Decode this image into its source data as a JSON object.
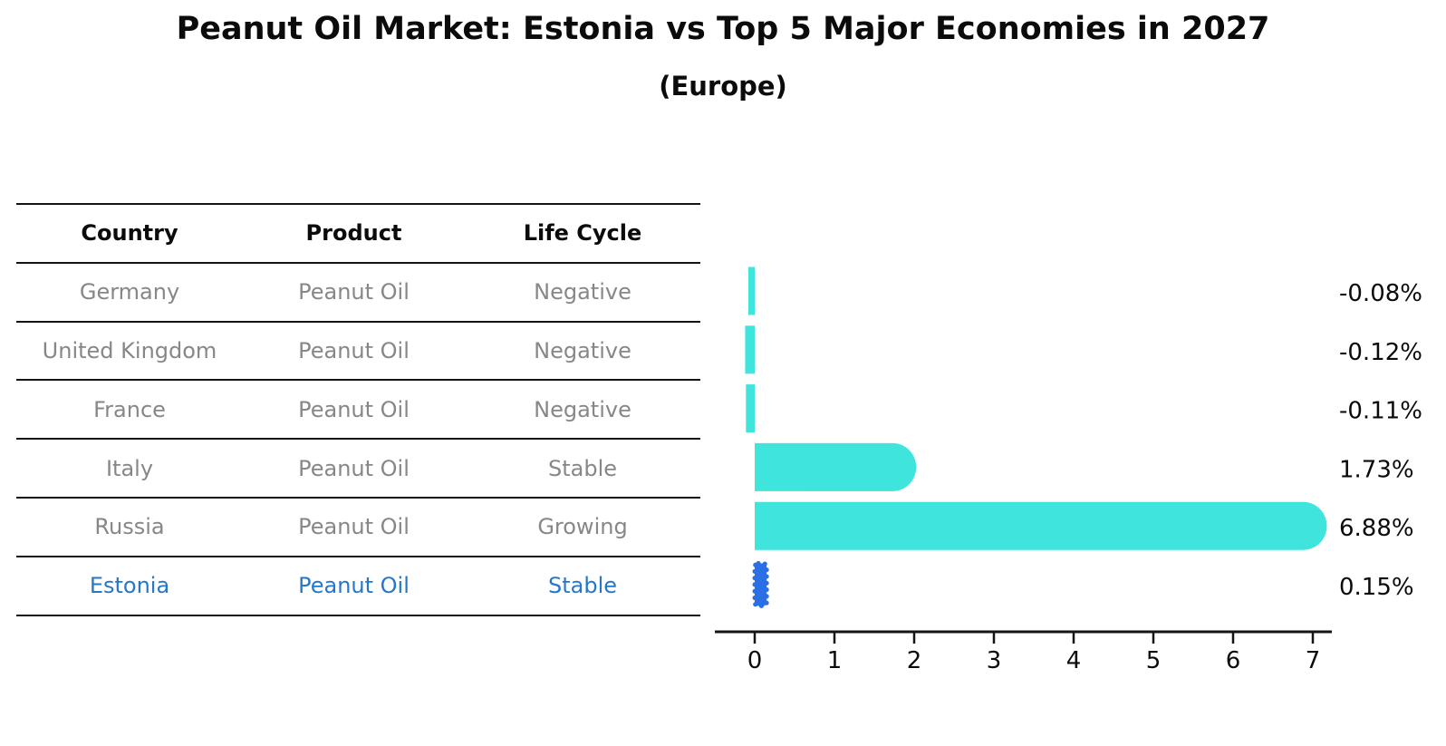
{
  "title": "Peanut Oil Market: Estonia vs Top 5 Major Economies in 2027",
  "subtitle": "(Europe)",
  "table": {
    "headers": [
      "Country",
      "Product",
      "Life Cycle"
    ],
    "rows": [
      {
        "country": "Germany",
        "product": "Peanut Oil",
        "life_cycle": "Negative",
        "highlight": false
      },
      {
        "country": "United Kingdom",
        "product": "Peanut Oil",
        "life_cycle": "Negative",
        "highlight": false
      },
      {
        "country": "France",
        "product": "Peanut Oil",
        "life_cycle": "Negative",
        "highlight": false
      },
      {
        "country": "Italy",
        "product": "Peanut Oil",
        "life_cycle": "Stable",
        "highlight": false
      },
      {
        "country": "Russia",
        "product": "Peanut Oil",
        "life_cycle": "Growing",
        "highlight": false
      },
      {
        "country": "Estonia",
        "product": "Peanut Oil",
        "life_cycle": "Stable",
        "highlight": true
      }
    ]
  },
  "chart_data": {
    "type": "bar",
    "orientation": "horizontal",
    "categories": [
      "Germany",
      "United Kingdom",
      "France",
      "Italy",
      "Russia",
      "Estonia"
    ],
    "values": [
      -0.08,
      -0.12,
      -0.11,
      1.73,
      6.88,
      0.15
    ],
    "value_labels": [
      "-0.08%",
      "-0.12%",
      "-0.11%",
      "1.73%",
      "6.88%",
      "0.15%"
    ],
    "xticks": [
      0,
      1,
      2,
      3,
      4,
      5,
      6,
      7
    ],
    "xlim": [
      -0.5,
      7.25
    ],
    "grid": false,
    "legend": false,
    "highlight_index": 5,
    "title": "Peanut Oil Market: Estonia vs Top 5 Major Economies in 2027 (Europe)",
    "xlabel": "",
    "ylabel": ""
  },
  "colors": {
    "bar": "#3FE4DD",
    "highlight_bar": "#2A6FE6",
    "highlight_text": "#2577C9",
    "axis": "#141414",
    "body_text": "#878787",
    "heading_text": "#0b0b0b"
  }
}
